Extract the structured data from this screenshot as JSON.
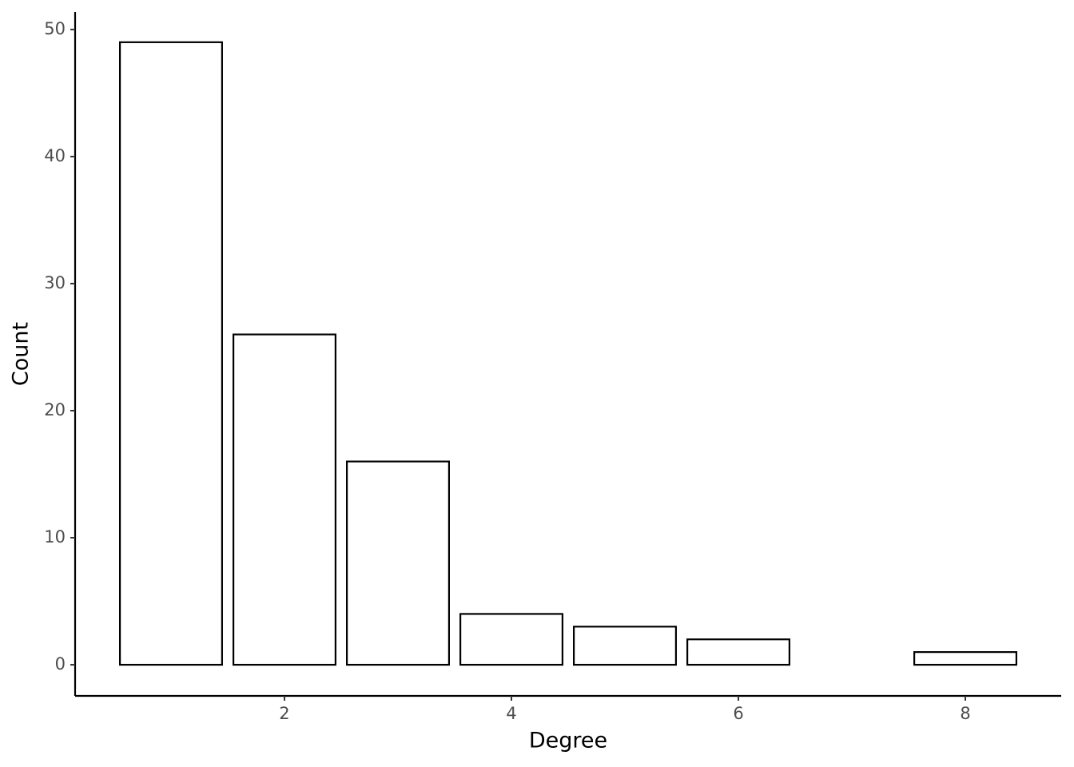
{
  "chart_data": {
    "type": "bar",
    "x_label": "Degree",
    "y_label": "Count",
    "x": [
      1,
      2,
      3,
      4,
      5,
      6,
      8
    ],
    "values": [
      49,
      26,
      16,
      4,
      3,
      2,
      1
    ],
    "color": "#ffffff",
    "edge_color": "#000000",
    "xlim": [
      0.155,
      8.845
    ],
    "xticks": [
      2,
      4,
      6,
      8
    ],
    "ylim": [
      -2.45,
      51.38
    ],
    "yticks": [
      0,
      10,
      20,
      30,
      40,
      50
    ],
    "grid": false
  }
}
